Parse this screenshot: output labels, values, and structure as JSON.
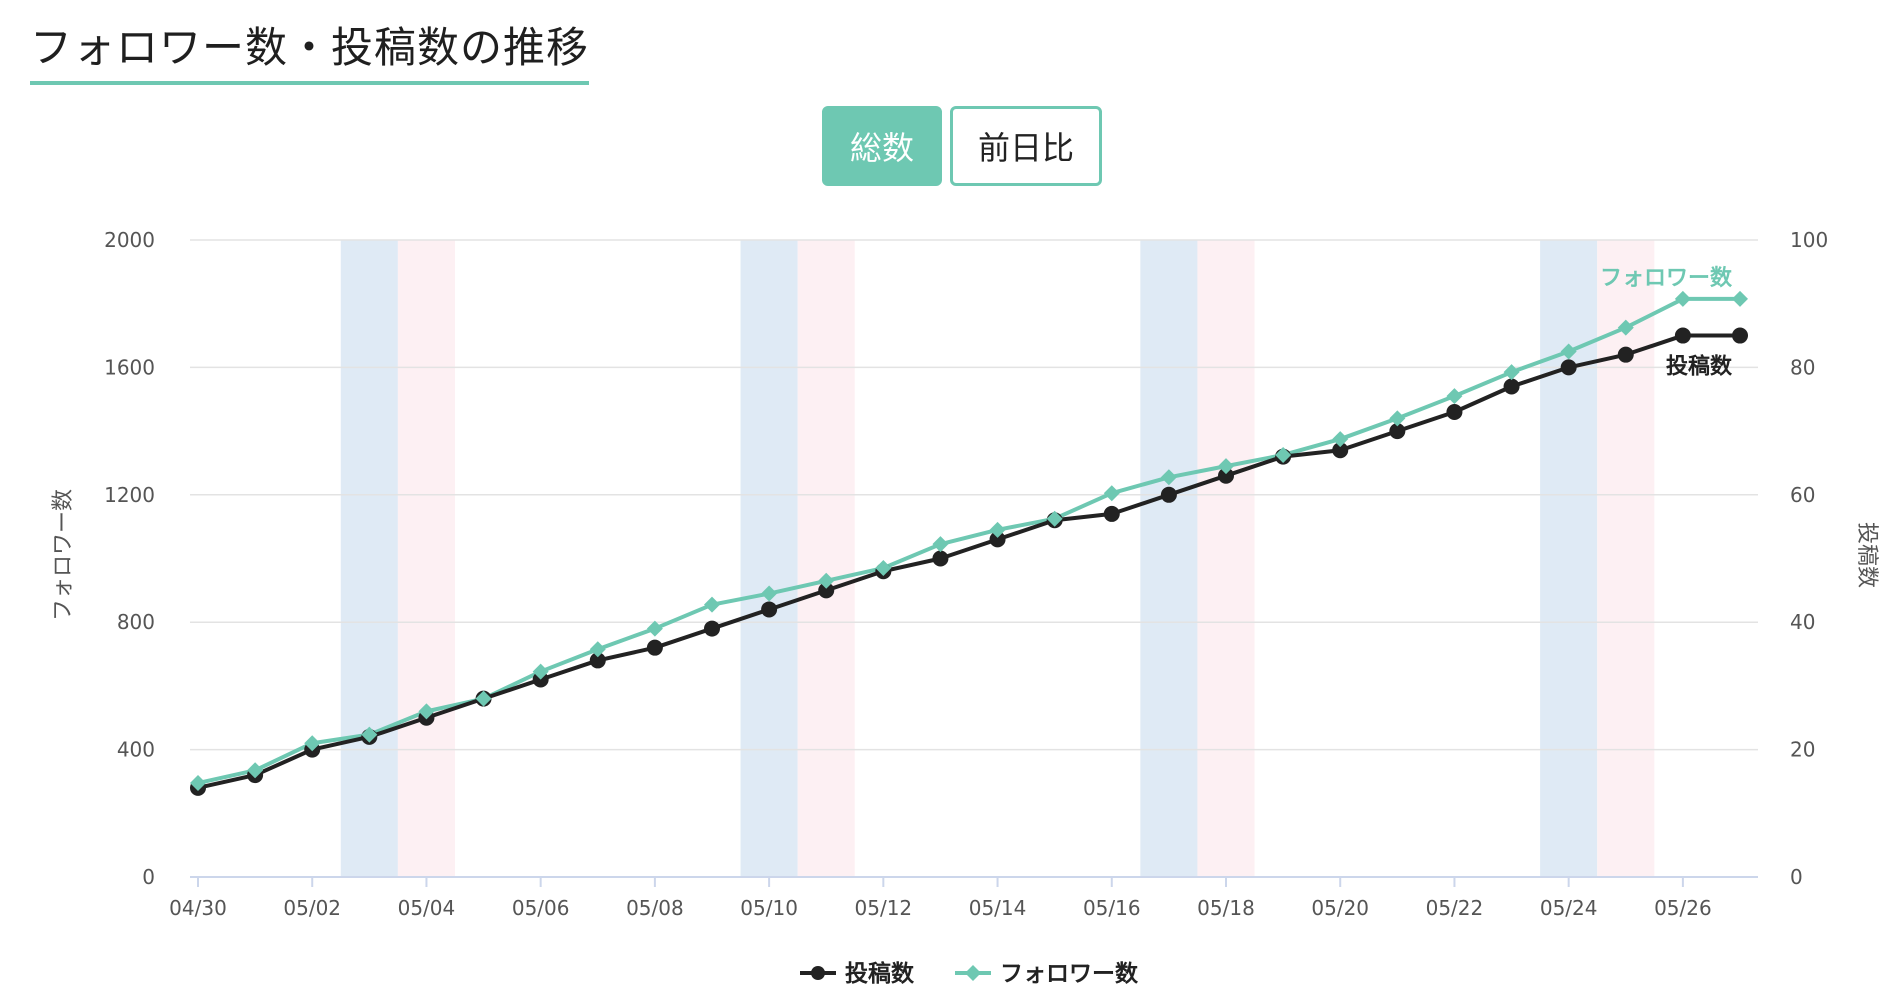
{
  "page": {
    "title": "フォロワー数・投稿数の推移"
  },
  "toggle": {
    "total_label": "総数",
    "daily_label": "前日比",
    "active": "total"
  },
  "colors": {
    "accent": "#6ec8b2",
    "posts": "#222222",
    "followers": "#6ec8b2",
    "saturday_band": "#dfeaf5",
    "sunday_band": "#fdf0f3",
    "grid": "#e3e3e3"
  },
  "chart_data": {
    "type": "line",
    "x": [
      "04/30",
      "05/01",
      "05/02",
      "05/03",
      "05/04",
      "05/05",
      "05/06",
      "05/07",
      "05/08",
      "05/09",
      "05/10",
      "05/11",
      "05/12",
      "05/13",
      "05/14",
      "05/15",
      "05/16",
      "05/17",
      "05/18",
      "05/19",
      "05/20",
      "05/21",
      "05/22",
      "05/23",
      "05/24",
      "05/25",
      "05/26",
      "05/27"
    ],
    "x_tick_labels": [
      "04/30",
      "05/02",
      "05/04",
      "05/06",
      "05/08",
      "05/10",
      "05/12",
      "05/14",
      "05/16",
      "05/18",
      "05/20",
      "05/22",
      "05/24",
      "05/26"
    ],
    "y_left": {
      "label": "フォロワー数",
      "lim": [
        0,
        2000
      ],
      "ticks": [
        "0",
        "400",
        "800",
        "1200",
        "1600",
        "2000"
      ]
    },
    "y_right": {
      "label": "投稿数",
      "lim": [
        0,
        100
      ],
      "ticks": [
        "0",
        "20",
        "40",
        "60",
        "80",
        "100"
      ]
    },
    "series": [
      {
        "name": "投稿数",
        "axis": "right",
        "marker": "circle",
        "values": [
          14,
          16,
          20,
          22,
          25,
          28,
          31,
          34,
          36,
          39,
          42,
          45,
          48,
          50,
          53,
          56,
          57,
          60,
          63,
          66,
          67,
          70,
          73,
          77,
          80,
          82,
          85,
          85
        ]
      },
      {
        "name": "フォロワー数",
        "axis": "left",
        "marker": "diamond",
        "values": [
          295,
          335,
          420,
          447,
          520,
          560,
          645,
          715,
          780,
          855,
          890,
          930,
          970,
          1045,
          1090,
          1125,
          1205,
          1255,
          1290,
          1325,
          1375,
          1440,
          1510,
          1585,
          1650,
          1725,
          1815,
          1815
        ]
      }
    ],
    "weekend_bands": [
      {
        "date": "05/03",
        "kind": "saturday"
      },
      {
        "date": "05/04",
        "kind": "sunday"
      },
      {
        "date": "05/10",
        "kind": "saturday"
      },
      {
        "date": "05/11",
        "kind": "sunday"
      },
      {
        "date": "05/17",
        "kind": "saturday"
      },
      {
        "date": "05/18",
        "kind": "sunday"
      },
      {
        "date": "05/24",
        "kind": "saturday"
      },
      {
        "date": "05/25",
        "kind": "sunday"
      }
    ],
    "end_labels": {
      "followers": "フォロワー数",
      "posts": "投稿数"
    },
    "legend": {
      "position": "bottom-center",
      "items": [
        "投稿数",
        "フォロワー数"
      ]
    },
    "grid": true
  }
}
